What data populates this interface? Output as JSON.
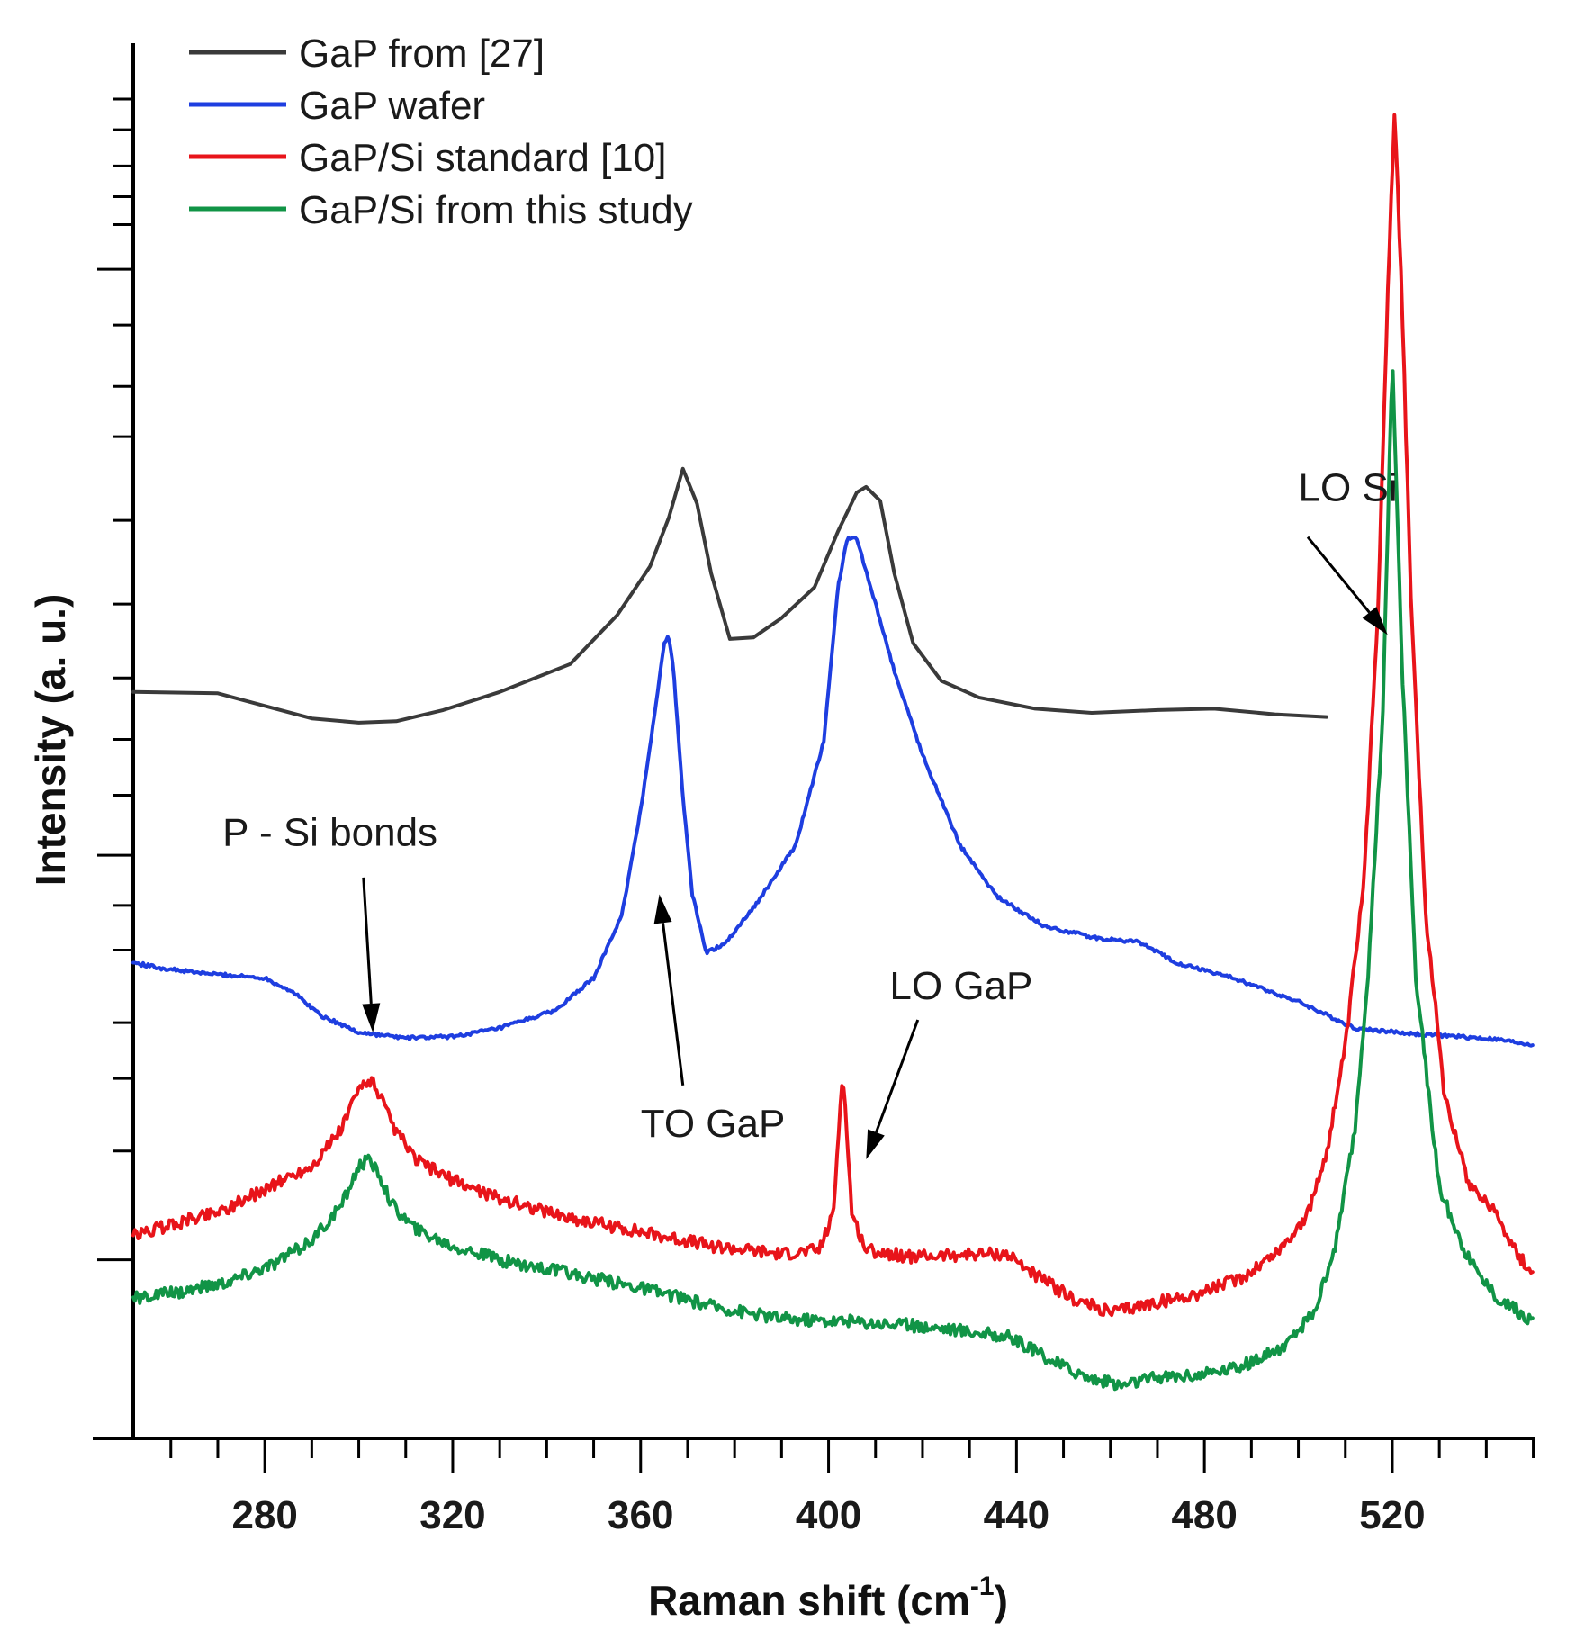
{
  "chart_data": {
    "type": "line",
    "title": "",
    "xlabel": "Raman shift (cm",
    "xlabel_sup": "-1",
    "xlabel_close": ")",
    "ylabel": "Intensity (a. u.)",
    "xlim": [
      252,
      550
    ],
    "ylim": [
      0,
      100
    ],
    "x_ticks": [
      280,
      320,
      360,
      400,
      440,
      480,
      520
    ],
    "y_ticks_show_labels": false,
    "legend_position": "top-left",
    "series": [
      {
        "name": "GaP from [27]",
        "color": "#3a3a3a",
        "noise": 0,
        "points": [
          [
            252,
            53.5
          ],
          [
            270,
            53.4
          ],
          [
            280,
            52.5
          ],
          [
            290,
            51.6
          ],
          [
            300,
            51.3
          ],
          [
            308,
            51.4
          ],
          [
            318,
            52.2
          ],
          [
            330,
            53.5
          ],
          [
            345,
            55.5
          ],
          [
            355,
            59
          ],
          [
            362,
            62.5
          ],
          [
            366,
            66
          ],
          [
            369,
            69.5
          ],
          [
            372,
            67
          ],
          [
            375,
            62
          ],
          [
            379,
            57.3
          ],
          [
            384,
            57.4
          ],
          [
            390,
            58.8
          ],
          [
            397,
            61
          ],
          [
            402,
            65
          ],
          [
            406,
            67.8
          ],
          [
            408,
            68.2
          ],
          [
            411,
            67.2
          ],
          [
            414,
            62
          ],
          [
            418,
            57
          ],
          [
            424,
            54.3
          ],
          [
            432,
            53.1
          ],
          [
            444,
            52.3
          ],
          [
            456,
            52.0
          ],
          [
            470,
            52.2
          ],
          [
            482,
            52.3
          ],
          [
            495,
            51.9
          ],
          [
            506,
            51.7
          ]
        ]
      },
      {
        "name": "GaP wafer",
        "color": "#1e3ee0",
        "noise": 0.12,
        "points": [
          [
            252,
            34.1
          ],
          [
            258,
            33.7
          ],
          [
            265,
            33.4
          ],
          [
            272,
            33.2
          ],
          [
            280,
            33.0
          ],
          [
            286,
            32.0
          ],
          [
            292,
            30.3
          ],
          [
            300,
            29.1
          ],
          [
            310,
            28.7
          ],
          [
            320,
            28.8
          ],
          [
            330,
            29.4
          ],
          [
            342,
            30.7
          ],
          [
            350,
            33.0
          ],
          [
            356,
            37.5
          ],
          [
            360,
            45
          ],
          [
            363,
            52
          ],
          [
            365,
            57
          ],
          [
            366,
            57.5
          ],
          [
            367,
            55
          ],
          [
            369,
            46
          ],
          [
            371,
            39
          ],
          [
            374,
            34.8
          ],
          [
            378,
            35.5
          ],
          [
            385,
            38.5
          ],
          [
            393,
            42.5
          ],
          [
            399,
            50
          ],
          [
            402,
            61
          ],
          [
            404,
            64.5
          ],
          [
            406,
            64.5
          ],
          [
            409,
            61
          ],
          [
            414,
            55
          ],
          [
            420,
            49
          ],
          [
            428,
            42.5
          ],
          [
            436,
            38.8
          ],
          [
            446,
            36.7
          ],
          [
            458,
            35.8
          ],
          [
            466,
            35.6
          ],
          [
            474,
            34.1
          ],
          [
            486,
            33.0
          ],
          [
            500,
            31.3
          ],
          [
            512,
            29.4
          ],
          [
            524,
            29.0
          ],
          [
            534,
            28.8
          ],
          [
            542,
            28.6
          ],
          [
            550,
            28.2
          ]
        ]
      },
      {
        "name": "GaP/Si standard [10]",
        "color": "#e8141a",
        "noise": 0.45,
        "points": [
          [
            252,
            14.5
          ],
          [
            262,
            15.5
          ],
          [
            272,
            16.5
          ],
          [
            282,
            18.2
          ],
          [
            290,
            19.5
          ],
          [
            296,
            22
          ],
          [
            300,
            25
          ],
          [
            302,
            25.8
          ],
          [
            304,
            25
          ],
          [
            307,
            22.5
          ],
          [
            312,
            20
          ],
          [
            320,
            18.5
          ],
          [
            330,
            17.2
          ],
          [
            345,
            15.8
          ],
          [
            360,
            14.8
          ],
          [
            375,
            13.8
          ],
          [
            390,
            13.2
          ],
          [
            398,
            13.5
          ],
          [
            401,
            16
          ],
          [
            403,
            26.5
          ],
          [
            405,
            16
          ],
          [
            408,
            13.5
          ],
          [
            418,
            13.0
          ],
          [
            430,
            13.2
          ],
          [
            438,
            13.2
          ],
          [
            445,
            11.5
          ],
          [
            452,
            10.0
          ],
          [
            460,
            9.0
          ],
          [
            468,
            9.6
          ],
          [
            478,
            10.3
          ],
          [
            488,
            11.5
          ],
          [
            496,
            13.5
          ],
          [
            502,
            16
          ],
          [
            506,
            20.5
          ],
          [
            510,
            28
          ],
          [
            514,
            40
          ],
          [
            517,
            60
          ],
          [
            519,
            82
          ],
          [
            520.5,
            95.5
          ],
          [
            522,
            82
          ],
          [
            524,
            60
          ],
          [
            527,
            38
          ],
          [
            531,
            25
          ],
          [
            536,
            18.5
          ],
          [
            542,
            16.2
          ],
          [
            547,
            13.0
          ],
          [
            550,
            11.8
          ]
        ]
      },
      {
        "name": "GaP/Si from this study",
        "color": "#119446",
        "noise": 0.45,
        "points": [
          [
            252,
            10.0
          ],
          [
            262,
            10.5
          ],
          [
            272,
            11.2
          ],
          [
            282,
            12.5
          ],
          [
            290,
            14.2
          ],
          [
            296,
            16.5
          ],
          [
            300,
            19.5
          ],
          [
            302,
            19.9
          ],
          [
            304,
            19.2
          ],
          [
            307,
            16.8
          ],
          [
            312,
            15.0
          ],
          [
            320,
            13.8
          ],
          [
            330,
            12.8
          ],
          [
            345,
            11.8
          ],
          [
            360,
            10.8
          ],
          [
            375,
            9.5
          ],
          [
            390,
            8.6
          ],
          [
            410,
            8.3
          ],
          [
            425,
            7.9
          ],
          [
            438,
            7.3
          ],
          [
            448,
            5.5
          ],
          [
            455,
            4.4
          ],
          [
            462,
            3.8
          ],
          [
            470,
            4.4
          ],
          [
            480,
            4.6
          ],
          [
            490,
            5.4
          ],
          [
            498,
            6.8
          ],
          [
            504,
            9.5
          ],
          [
            508,
            14
          ],
          [
            512,
            22
          ],
          [
            515,
            34
          ],
          [
            518,
            52
          ],
          [
            520,
            77.5
          ],
          [
            522,
            56
          ],
          [
            525,
            33
          ],
          [
            530,
            18
          ],
          [
            536,
            13.0
          ],
          [
            542,
            10.2
          ],
          [
            550,
            8.4
          ]
        ]
      }
    ],
    "annotations": [
      {
        "label": "P - Si bonds",
        "text_x": 271,
        "text_y": 42.5,
        "arrow_from": [
          301,
          40.2
        ],
        "arrow_to": [
          303,
          29.1
        ]
      },
      {
        "label": "TO GaP",
        "text_x": 360,
        "text_y": 21.6,
        "arrow_from": [
          369,
          25.3
        ],
        "arrow_to": [
          364,
          39.0
        ]
      },
      {
        "label": "LO GaP",
        "text_x": 413,
        "text_y": 31.5,
        "arrow_from": [
          419,
          30.0
        ],
        "arrow_to": [
          408,
          20.0
        ]
      },
      {
        "label": "LO Si",
        "text_x": 500,
        "text_y": 67.2,
        "arrow_from": [
          502,
          64.6
        ],
        "arrow_to": [
          519,
          57.6
        ]
      }
    ]
  }
}
